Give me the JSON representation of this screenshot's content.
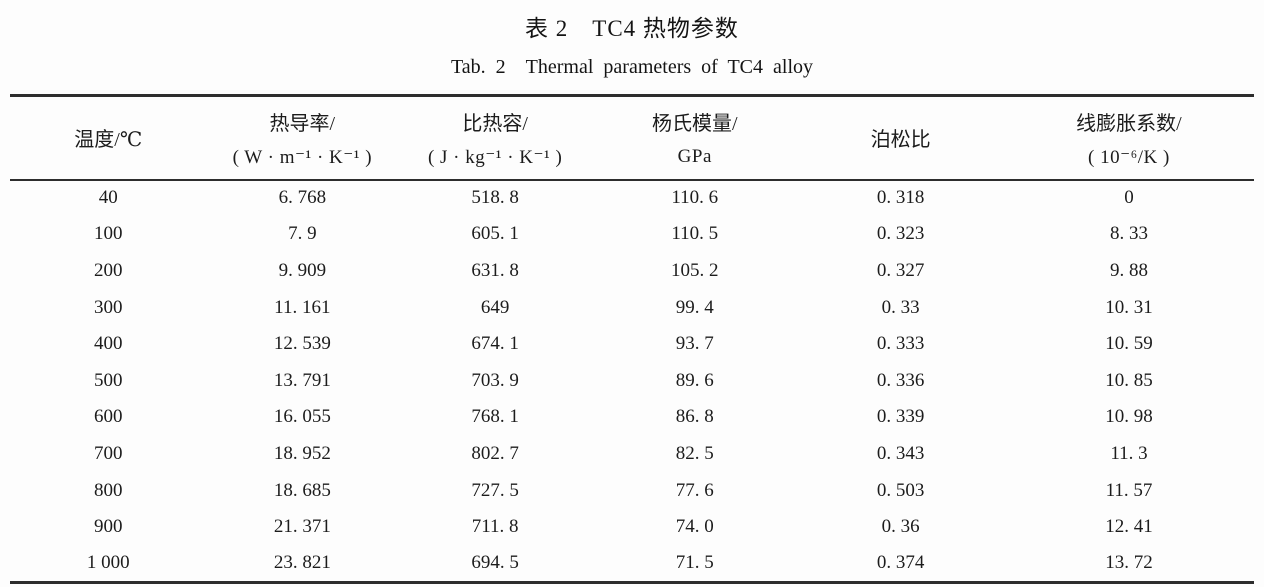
{
  "page": {
    "title_cn": "表 2　TC4 热物参数",
    "title_en": "Tab. 2　Thermal parameters of TC4 alloy"
  },
  "table": {
    "columns": [
      {
        "title": "温度/℃",
        "unit": ""
      },
      {
        "title": "热导率/",
        "unit": "( W · m⁻¹ · K⁻¹ )"
      },
      {
        "title": "比热容/",
        "unit": "( J · kg⁻¹ · K⁻¹ )"
      },
      {
        "title": "杨氏模量/",
        "unit": "GPa"
      },
      {
        "title": "泊松比",
        "unit": ""
      },
      {
        "title": "线膨胀系数/",
        "unit": "( 10⁻⁶/K )"
      }
    ],
    "rows": [
      [
        "40",
        "6. 768",
        "518. 8",
        "110. 6",
        "0. 318",
        "0"
      ],
      [
        "100",
        "7. 9",
        "605. 1",
        "110. 5",
        "0. 323",
        "8. 33"
      ],
      [
        "200",
        "9. 909",
        "631. 8",
        "105. 2",
        "0. 327",
        "9. 88"
      ],
      [
        "300",
        "11. 161",
        "649",
        "99. 4",
        "0. 33",
        "10. 31"
      ],
      [
        "400",
        "12. 539",
        "674. 1",
        "93. 7",
        "0. 333",
        "10. 59"
      ],
      [
        "500",
        "13. 791",
        "703. 9",
        "89. 6",
        "0. 336",
        "10. 85"
      ],
      [
        "600",
        "16. 055",
        "768. 1",
        "86. 8",
        "0. 339",
        "10. 98"
      ],
      [
        "700",
        "18. 952",
        "802. 7",
        "82. 5",
        "0. 343",
        "11. 3"
      ],
      [
        "800",
        "18. 685",
        "727. 5",
        "77. 6",
        "0. 503",
        "11. 57"
      ],
      [
        "900",
        "21. 371",
        "711. 8",
        "74. 0",
        "0. 36",
        "12. 41"
      ],
      [
        "1 000",
        "23. 821",
        "694. 5",
        "71. 5",
        "0. 374",
        "13. 72"
      ]
    ]
  }
}
